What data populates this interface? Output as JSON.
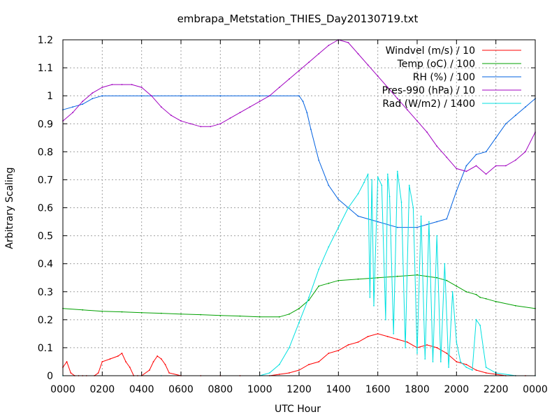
{
  "chart_data": {
    "type": "line",
    "title": "embrapa_Metstation_THIES_Day20130719.txt",
    "xlabel": "UTC Hour",
    "ylabel": "Arbitrary Scaling",
    "xlim": [
      0,
      24
    ],
    "ylim": [
      0,
      1.2
    ],
    "grid": true,
    "legend_position": "top-right",
    "x_ticks": [
      {
        "x": 0,
        "label": "0000"
      },
      {
        "x": 2,
        "label": "0200"
      },
      {
        "x": 4,
        "label": "0400"
      },
      {
        "x": 6,
        "label": "0600"
      },
      {
        "x": 8,
        "label": "0800"
      },
      {
        "x": 10,
        "label": "1000"
      },
      {
        "x": 12,
        "label": "1200"
      },
      {
        "x": 14,
        "label": "1400"
      },
      {
        "x": 16,
        "label": "1600"
      },
      {
        "x": 18,
        "label": "1800"
      },
      {
        "x": 20,
        "label": "2000"
      },
      {
        "x": 22,
        "label": "2200"
      },
      {
        "x": 24,
        "label": "0000"
      }
    ],
    "y_ticks": [
      {
        "y": 0,
        "label": "0"
      },
      {
        "y": 0.1,
        "label": "0.1"
      },
      {
        "y": 0.2,
        "label": "0.2"
      },
      {
        "y": 0.3,
        "label": "0.3"
      },
      {
        "y": 0.4,
        "label": "0.4"
      },
      {
        "y": 0.5,
        "label": "0.5"
      },
      {
        "y": 0.6,
        "label": "0.6"
      },
      {
        "y": 0.7,
        "label": "0.7"
      },
      {
        "y": 0.8,
        "label": "0.8"
      },
      {
        "y": 0.9,
        "label": "0.9"
      },
      {
        "y": 1.0,
        "label": "1"
      },
      {
        "y": 1.1,
        "label": "1.1"
      },
      {
        "y": 1.2,
        "label": "1.2"
      }
    ],
    "series": [
      {
        "name": "Windvel (m/s) / 10",
        "color": "#ff0000",
        "x": [
          0,
          0.2,
          0.4,
          0.6,
          0.8,
          1.0,
          1.2,
          1.6,
          1.8,
          2.0,
          2.4,
          2.8,
          3.0,
          3.2,
          3.4,
          3.6,
          3.8,
          4.0,
          4.4,
          4.6,
          4.8,
          5.0,
          5.2,
          5.4,
          6.0,
          7.0,
          8.0,
          9.0,
          10.0,
          10.5,
          11.0,
          11.5,
          12.0,
          12.5,
          13.0,
          13.5,
          14.0,
          14.5,
          15.0,
          15.5,
          16.0,
          16.5,
          17.0,
          17.5,
          18.0,
          18.5,
          19.0,
          19.5,
          20.0,
          20.5,
          21.0,
          21.5,
          22.0,
          22.5,
          23.0,
          23.5,
          24.0
        ],
        "y": [
          0.03,
          0.05,
          0.01,
          0.0,
          0.0,
          0.0,
          0.0,
          0.0,
          0.01,
          0.05,
          0.06,
          0.07,
          0.08,
          0.05,
          0.03,
          0.0,
          0.0,
          0.0,
          0.02,
          0.05,
          0.07,
          0.06,
          0.04,
          0.01,
          0.0,
          0.0,
          0.0,
          0.0,
          0.0,
          0.0,
          0.005,
          0.01,
          0.02,
          0.04,
          0.05,
          0.08,
          0.09,
          0.11,
          0.12,
          0.14,
          0.15,
          0.14,
          0.13,
          0.12,
          0.1,
          0.11,
          0.1,
          0.08,
          0.05,
          0.04,
          0.02,
          0.01,
          0.005,
          0.0,
          0.0,
          0.0,
          0.0
        ]
      },
      {
        "name": "Temp (oC) / 100",
        "color": "#00a000",
        "x": [
          0,
          1,
          2,
          3,
          4,
          5,
          6,
          7,
          8,
          9,
          10,
          11,
          11.5,
          12,
          12.5,
          13,
          13.5,
          14,
          15,
          16,
          17,
          18,
          18.5,
          19,
          19.5,
          20,
          20.5,
          21,
          21.2,
          21.5,
          22,
          23,
          24
        ],
        "y": [
          0.24,
          0.235,
          0.23,
          0.228,
          0.225,
          0.223,
          0.22,
          0.218,
          0.215,
          0.213,
          0.21,
          0.21,
          0.22,
          0.24,
          0.27,
          0.32,
          0.33,
          0.34,
          0.345,
          0.35,
          0.355,
          0.36,
          0.355,
          0.35,
          0.34,
          0.32,
          0.3,
          0.29,
          0.28,
          0.275,
          0.265,
          0.25,
          0.24
        ]
      },
      {
        "name": "RH (%) / 100",
        "color": "#0060e0",
        "x": [
          0,
          0.5,
          1,
          1.5,
          2,
          4,
          6,
          8,
          10,
          12,
          12.2,
          12.4,
          12.6,
          13,
          13.5,
          14,
          14.5,
          15,
          16,
          17,
          18,
          18.5,
          19,
          19.5,
          20,
          20.5,
          21,
          21.5,
          22,
          22.5,
          23,
          23.5,
          24
        ],
        "y": [
          0.95,
          0.96,
          0.97,
          0.99,
          1.0,
          1.0,
          1.0,
          1.0,
          1.0,
          1.0,
          0.98,
          0.94,
          0.88,
          0.77,
          0.68,
          0.63,
          0.6,
          0.57,
          0.55,
          0.53,
          0.53,
          0.54,
          0.55,
          0.56,
          0.66,
          0.75,
          0.79,
          0.8,
          0.85,
          0.9,
          0.93,
          0.96,
          0.99
        ]
      },
      {
        "name": "Pres-990 (hPa) / 10",
        "color": "#a000c0",
        "x": [
          0,
          0.5,
          1,
          1.5,
          2,
          2.5,
          3,
          3.5,
          4,
          4.5,
          5,
          5.5,
          6,
          6.5,
          7,
          7.5,
          8,
          8.5,
          9,
          9.5,
          10,
          10.5,
          11,
          11.5,
          12,
          12.5,
          13,
          13.5,
          14,
          14.5,
          15,
          15.5,
          16,
          16.5,
          17,
          17.5,
          18,
          18.5,
          19,
          19.5,
          20,
          20.5,
          21,
          21.5,
          22,
          22.5,
          23,
          23.5,
          24
        ],
        "y": [
          0.91,
          0.94,
          0.98,
          1.01,
          1.03,
          1.04,
          1.04,
          1.04,
          1.03,
          1.0,
          0.96,
          0.93,
          0.91,
          0.9,
          0.89,
          0.89,
          0.9,
          0.92,
          0.94,
          0.96,
          0.98,
          1.0,
          1.03,
          1.06,
          1.09,
          1.12,
          1.15,
          1.18,
          1.2,
          1.19,
          1.15,
          1.11,
          1.07,
          1.03,
          0.99,
          0.95,
          0.91,
          0.87,
          0.82,
          0.78,
          0.74,
          0.73,
          0.75,
          0.72,
          0.75,
          0.75,
          0.77,
          0.8,
          0.87
        ]
      },
      {
        "name": "Rad (W/m2) / 1400",
        "color": "#00e0e0",
        "x": [
          0,
          5,
          10,
          10.5,
          11,
          11.5,
          12,
          12.5,
          13,
          13.5,
          14,
          14.5,
          15,
          15.3,
          15.5,
          15.6,
          15.7,
          15.8,
          16.0,
          16.2,
          16.4,
          16.5,
          16.6,
          16.8,
          17.0,
          17.2,
          17.4,
          17.6,
          17.8,
          18.0,
          18.2,
          18.4,
          18.6,
          18.8,
          19.0,
          19.2,
          19.4,
          19.6,
          19.8,
          20.0,
          20.2,
          20.5,
          20.8,
          21.0,
          21.2,
          21.5,
          22.0,
          23.0,
          24.0
        ],
        "y": [
          0.0,
          0.0,
          0.0,
          0.01,
          0.04,
          0.1,
          0.19,
          0.28,
          0.38,
          0.46,
          0.53,
          0.6,
          0.65,
          0.69,
          0.72,
          0.28,
          0.7,
          0.25,
          0.71,
          0.68,
          0.2,
          0.72,
          0.64,
          0.15,
          0.73,
          0.62,
          0.1,
          0.68,
          0.6,
          0.08,
          0.57,
          0.06,
          0.55,
          0.05,
          0.5,
          0.05,
          0.4,
          0.03,
          0.3,
          0.12,
          0.05,
          0.03,
          0.02,
          0.2,
          0.18,
          0.03,
          0.01,
          0.0,
          0.0
        ]
      }
    ]
  }
}
